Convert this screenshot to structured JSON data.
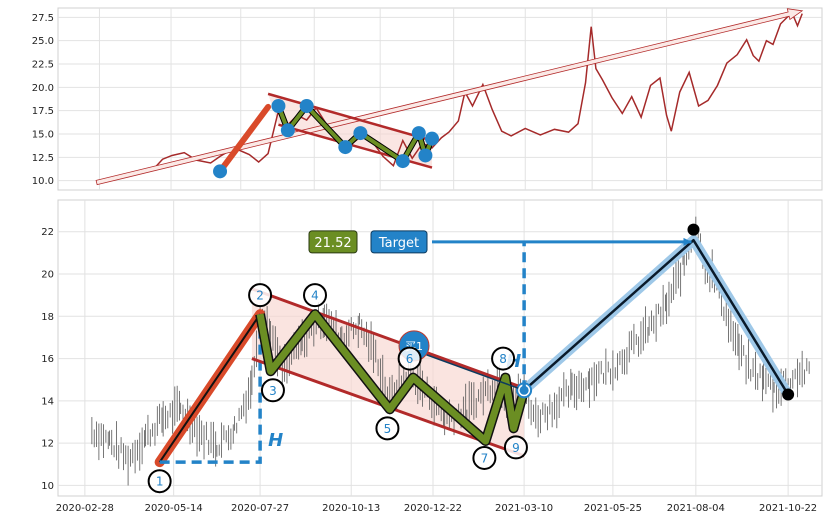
{
  "colors": {
    "price_line": "#a52a2a",
    "trend_red": "#b22a2a",
    "wave_green": "#6b8e23",
    "wave_blue": "#2383c8",
    "channel_fill": "#f7d6d0",
    "pole_red": "#d94a2a",
    "grid": "#e2e2e2",
    "panel_bg": "#ffffff",
    "axis_text": "#222222"
  },
  "chart_data": [
    {
      "type": "line",
      "panel": "top",
      "y_ticks": [
        "10.0",
        "12.5",
        "15.0",
        "17.5",
        "20.0",
        "22.5",
        "25.0",
        "27.5"
      ],
      "ylim": [
        9,
        28.5
      ],
      "x_dates_range": [
        "2020-01-15",
        "2022-04-05"
      ],
      "series": [
        {
          "values": [
            [
              "2020-02-25",
              9.8
            ],
            [
              "2020-03-10",
              10.2
            ],
            [
              "2020-03-25",
              10.6
            ],
            [
              "2020-04-10",
              11.0
            ],
            [
              "2020-04-25",
              11.2
            ],
            [
              "2020-05-05",
              12.3
            ],
            [
              "2020-05-15",
              12.7
            ],
            [
              "2020-05-28",
              13.0
            ],
            [
              "2020-06-10",
              12.2
            ],
            [
              "2020-06-25",
              11.9
            ],
            [
              "2020-07-05",
              12.6
            ],
            [
              "2020-07-20",
              13.5
            ],
            [
              "2020-08-05",
              12.8
            ],
            [
              "2020-08-15",
              12.0
            ],
            [
              "2020-08-25",
              12.9
            ],
            [
              "2020-09-05",
              17.5
            ],
            [
              "2020-09-15",
              16.0
            ],
            [
              "2020-09-25",
              17.0
            ],
            [
              "2020-10-05",
              16.5
            ],
            [
              "2020-10-15",
              17.8
            ],
            [
              "2020-10-25",
              16.2
            ],
            [
              "2020-11-05",
              14.5
            ],
            [
              "2020-11-15",
              13.4
            ],
            [
              "2020-11-25",
              14.2
            ],
            [
              "2020-12-05",
              15.0
            ],
            [
              "2020-12-15",
              14.0
            ],
            [
              "2020-12-25",
              12.6
            ],
            [
              "2021-01-05",
              11.6
            ],
            [
              "2021-01-15",
              14.3
            ],
            [
              "2021-01-25",
              12.4
            ],
            [
              "2021-02-05",
              14.0
            ],
            [
              "2021-02-15",
              13.5
            ],
            [
              "2021-02-25",
              14.6
            ],
            [
              "2021-03-05",
              15.2
            ],
            [
              "2021-03-15",
              16.4
            ],
            [
              "2021-03-22",
              19.5
            ],
            [
              "2021-03-30",
              18.0
            ],
            [
              "2021-04-10",
              20.3
            ],
            [
              "2021-04-20",
              17.6
            ],
            [
              "2021-04-30",
              15.3
            ],
            [
              "2021-05-10",
              14.8
            ],
            [
              "2021-05-25",
              15.6
            ],
            [
              "2021-06-10",
              14.9
            ],
            [
              "2021-06-25",
              15.5
            ],
            [
              "2021-07-10",
              15.2
            ],
            [
              "2021-07-20",
              16.1
            ],
            [
              "2021-07-28",
              20.5
            ],
            [
              "2021-08-03",
              26.5
            ],
            [
              "2021-08-08",
              22.0
            ],
            [
              "2021-08-15",
              20.8
            ],
            [
              "2021-08-25",
              18.9
            ],
            [
              "2021-09-05",
              17.2
            ],
            [
              "2021-09-15",
              19.0
            ],
            [
              "2021-09-25",
              16.8
            ],
            [
              "2021-10-05",
              20.2
            ],
            [
              "2021-10-15",
              21.0
            ],
            [
              "2021-10-22",
              17.0
            ],
            [
              "2021-10-27",
              15.3
            ],
            [
              "2021-11-05",
              19.5
            ],
            [
              "2021-11-15",
              21.6
            ],
            [
              "2021-11-25",
              18.0
            ],
            [
              "2021-12-05",
              18.6
            ],
            [
              "2021-12-15",
              20.2
            ],
            [
              "2021-12-25",
              22.6
            ],
            [
              "2022-01-05",
              23.5
            ],
            [
              "2022-01-15",
              25.1
            ],
            [
              "2022-01-22",
              23.4
            ],
            [
              "2022-01-28",
              22.8
            ],
            [
              "2022-02-05",
              25.0
            ],
            [
              "2022-02-12",
              24.6
            ],
            [
              "2022-02-20",
              26.8
            ],
            [
              "2022-02-28",
              27.6
            ],
            [
              "2022-03-05",
              27.8
            ],
            [
              "2022-03-10",
              26.6
            ],
            [
              "2022-03-15",
              27.9
            ]
          ]
        }
      ],
      "arrow": {
        "from": [
          "2020-02-25",
          9.8
        ],
        "to": [
          "2022-03-15",
          28.2
        ]
      },
      "pole": {
        "from": [
          "2020-07-05",
          11.0
        ],
        "to": [
          "2020-08-25",
          17.9
        ]
      },
      "channel_upper": {
        "from": [
          "2020-08-25",
          19.3
        ],
        "to": [
          "2021-02-15",
          14.3
        ]
      },
      "channel_lower": {
        "from": [
          "2020-09-05",
          16.0
        ],
        "to": [
          "2021-02-15",
          11.4
        ]
      },
      "wave_points": [
        [
          "2020-07-05",
          11.0
        ],
        [
          "2020-09-05",
          18.0
        ],
        [
          "2020-09-15",
          15.4
        ],
        [
          "2020-10-05",
          18.0
        ],
        [
          "2020-11-15",
          13.6
        ],
        [
          "2020-12-01",
          15.1
        ],
        [
          "2021-01-15",
          12.1
        ],
        [
          "2021-02-01",
          15.1
        ],
        [
          "2021-02-08",
          12.7
        ],
        [
          "2021-02-15",
          14.5
        ]
      ]
    },
    {
      "type": "line",
      "panel": "bottom",
      "y_ticks": [
        "10",
        "12",
        "14",
        "16",
        "18",
        "20",
        "22"
      ],
      "ylim": [
        9.5,
        23.5
      ],
      "x_ticks": [
        "2020-02-28",
        "2020-05-14",
        "2020-07-27",
        "2020-10-13",
        "2020-12-22",
        "2021-03-10",
        "2021-05-25",
        "2021-08-04",
        "2021-10-22"
      ],
      "x_dates_range": [
        "2020-02-05",
        "2021-11-20"
      ],
      "series": [
        {
          "values": [
            [
              "2020-03-05",
              12.6
            ],
            [
              "2020-03-20",
              12.1
            ],
            [
              "2020-04-05",
              11.2
            ],
            [
              "2020-04-20",
              12.3
            ],
            [
              "2020-05-05",
              13.2
            ],
            [
              "2020-05-20",
              13.6
            ],
            [
              "2020-06-05",
              12.5
            ],
            [
              "2020-06-20",
              11.9
            ],
            [
              "2020-07-05",
              12.7
            ],
            [
              "2020-07-20",
              14.8
            ],
            [
              "2020-07-27",
              18.3
            ],
            [
              "2020-08-05",
              17.2
            ],
            [
              "2020-08-15",
              15.4
            ],
            [
              "2020-09-01",
              16.8
            ],
            [
              "2020-09-20",
              18.0
            ],
            [
              "2020-10-05",
              17.0
            ],
            [
              "2020-10-20",
              17.6
            ],
            [
              "2020-11-05",
              15.9
            ],
            [
              "2020-11-15",
              14.1
            ],
            [
              "2020-12-01",
              15.3
            ],
            [
              "2020-12-15",
              14.5
            ],
            [
              "2021-01-01",
              13.2
            ],
            [
              "2021-01-20",
              13.6
            ],
            [
              "2021-02-05",
              14.5
            ],
            [
              "2021-02-15",
              15.0
            ],
            [
              "2021-02-25",
              13.7
            ],
            [
              "2021-03-10",
              14.6
            ],
            [
              "2021-03-20",
              13.2
            ],
            [
              "2021-04-05",
              13.8
            ],
            [
              "2021-04-20",
              14.5
            ],
            [
              "2021-05-05",
              15.0
            ],
            [
              "2021-05-25",
              15.6
            ],
            [
              "2021-06-10",
              16.5
            ],
            [
              "2021-06-25",
              17.4
            ],
            [
              "2021-07-10",
              18.5
            ],
            [
              "2021-07-25",
              20.5
            ],
            [
              "2021-08-04",
              22.3
            ],
            [
              "2021-08-12",
              20.5
            ],
            [
              "2021-08-20",
              19.8
            ],
            [
              "2021-09-01",
              17.8
            ],
            [
              "2021-09-10",
              16.4
            ],
            [
              "2021-09-20",
              15.4
            ],
            [
              "2021-10-01",
              15.1
            ],
            [
              "2021-10-10",
              14.5
            ],
            [
              "2021-10-22",
              14.9
            ],
            [
              "2021-11-01",
              15.4
            ],
            [
              "2021-11-10",
              15.3
            ]
          ]
        }
      ],
      "channel_upper": {
        "from": [
          "2020-07-20",
          19.3
        ],
        "to": [
          "2021-03-10",
          14.6
        ]
      },
      "channel_lower": {
        "from": [
          "2020-07-20",
          16.0
        ],
        "to": [
          "2021-03-10",
          11.4
        ]
      },
      "pole": {
        "from": [
          "2020-05-02",
          11.1
        ],
        "to": [
          "2020-07-27",
          18.1
        ]
      },
      "wave_points": [
        [
          "2020-07-27",
          18.1
        ],
        [
          "2020-08-05",
          15.4
        ],
        [
          "2020-09-12",
          18.1
        ],
        [
          "2020-11-15",
          13.6
        ],
        [
          "2020-12-05",
          15.1
        ],
        [
          "2021-02-05",
          12.1
        ],
        [
          "2021-02-22",
          15.1
        ],
        [
          "2021-03-01",
          12.7
        ],
        [
          "2021-03-10",
          14.5
        ]
      ],
      "blue_path": [
        [
          "2021-03-10",
          14.5
        ],
        [
          "2021-08-02",
          21.6
        ],
        [
          "2021-10-22",
          14.3
        ]
      ],
      "markers": [
        {
          "label": "1",
          "at": [
            "2020-05-02",
            10.2
          ]
        },
        {
          "label": "2",
          "at": [
            "2020-07-27",
            19.0
          ]
        },
        {
          "label": "3",
          "at": [
            "2020-08-07",
            14.5
          ]
        },
        {
          "label": "4",
          "at": [
            "2020-09-12",
            19.0
          ]
        },
        {
          "label": "5",
          "at": [
            "2020-11-13",
            12.7
          ]
        },
        {
          "label": "6",
          "at": [
            "2020-12-02",
            16.0
          ]
        },
        {
          "label": "7",
          "at": [
            "2021-02-04",
            11.3
          ]
        },
        {
          "label": "8",
          "at": [
            "2021-02-20",
            16.0
          ]
        },
        {
          "label": "9",
          "at": [
            "2021-03-03",
            11.8
          ]
        }
      ],
      "buy_label": "买1",
      "target_value": "21.52",
      "target_label": "Target",
      "height_label": "H"
    }
  ]
}
